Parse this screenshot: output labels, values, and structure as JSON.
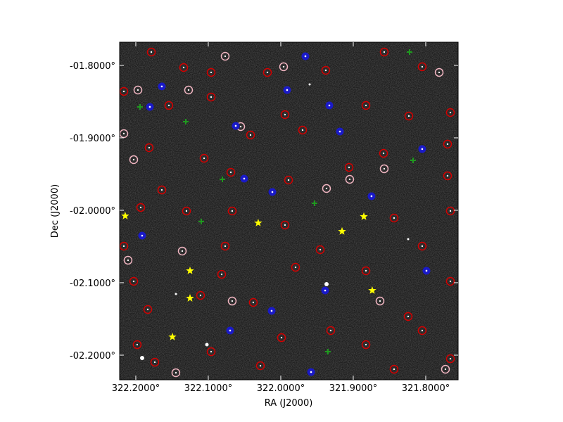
{
  "chart_data": {
    "type": "scatter",
    "xlabel": "RA (J2000)",
    "ylabel": "Dec (J2000)",
    "xlim": [
      322.2223,
      321.7553
    ],
    "ylim": [
      -2.234,
      -1.768
    ],
    "xticks": [
      {
        "value": 322.2,
        "label": "322.2000°"
      },
      {
        "value": 322.1,
        "label": "322.1000°"
      },
      {
        "value": 322.0,
        "label": "322.0000°"
      },
      {
        "value": 321.9,
        "label": "321.9000°"
      },
      {
        "value": 321.8,
        "label": "321.8000°"
      }
    ],
    "yticks": [
      {
        "value": -1.8,
        "label": "-01.8000°"
      },
      {
        "value": -1.9,
        "label": "-01.9000°"
      },
      {
        "value": -2.0,
        "label": "-02.0000°"
      },
      {
        "value": -2.1,
        "label": "-02.1000°"
      },
      {
        "value": -2.2,
        "label": "-02.2000°"
      }
    ],
    "background": "#1c1c1c",
    "series": [
      {
        "color": "#d40000",
        "marker": "ring",
        "x": [
          322.1786,
          322.134,
          322.0961,
          322.0184,
          321.9379,
          321.8573,
          321.8049,
          322.2165,
          322.1544,
          322.0961,
          321.9942,
          321.8825,
          321.8233,
          321.766,
          322.1816,
          322.1058,
          322.0417,
          321.9699,
          321.8582,
          321.7699,
          322.1641,
          322.0689,
          321.9893,
          321.9058,
          321.7699,
          322.1932,
          322.1301,
          322.067,
          321.9942,
          321.8437,
          321.766,
          322.2165,
          322.0767,
          321.9456,
          321.8049,
          322.2029,
          322.0815,
          321.9796,
          321.8825,
          321.766,
          322.1835,
          322.1107,
          322.0379,
          321.9311,
          321.8243,
          322.1981,
          322.0961,
          321.999,
          321.8825,
          321.8049,
          322.1738,
          322.0281,
          321.8437,
          321.766
        ],
        "y": [
          -1.7816,
          -1.8029,
          -1.8097,
          -1.8097,
          -1.8068,
          -1.7816,
          -1.8019,
          -1.8359,
          -1.8553,
          -1.8437,
          -1.868,
          -1.8553,
          -1.8699,
          -1.8651,
          -1.9136,
          -1.9282,
          -1.8961,
          -1.8893,
          -1.9214,
          -1.9087,
          -1.9719,
          -1.9476,
          -1.9583,
          -1.9408,
          -1.9524,
          -1.9961,
          -2.001,
          -2.001,
          -2.0204,
          -2.0107,
          -2.001,
          -2.0495,
          -2.0495,
          -2.0544,
          -2.0495,
          -2.0981,
          -2.0884,
          -2.0787,
          -2.0835,
          -2.0981,
          -2.1369,
          -2.1175,
          -2.1272,
          -2.166,
          -2.1466,
          -2.1855,
          -2.1952,
          -2.1758,
          -2.1855,
          -2.166,
          -2.2097,
          -2.2146,
          -2.2194,
          -2.2049
        ]
      },
      {
        "color": "#f2b6c2",
        "marker": "ring",
        "x": [
          322.1971,
          322.2165,
          322.2029,
          322.1272,
          322.0767,
          322.0553,
          321.9961,
          321.9369,
          321.9049,
          321.8573,
          321.7815,
          322.1359,
          322.2107,
          322.067,
          321.8631,
          321.7728,
          322.1447
        ],
        "y": [
          -1.834,
          -1.8942,
          -1.9301,
          -1.834,
          -1.7874,
          -1.8845,
          -1.8019,
          -1.9699,
          -1.9573,
          -1.9427,
          -1.8097,
          -2.0563,
          -2.069,
          -2.1253,
          -2.1253,
          -2.2194,
          -2.2243
        ]
      },
      {
        "color": "#1a1ac8",
        "marker": "dot",
        "x": [
          322.1641,
          322.1806,
          322.0621,
          321.966,
          321.9913,
          321.933,
          321.9184,
          321.8049,
          322.0505,
          322.0116,
          321.8748,
          322.1913,
          321.799,
          321.9388,
          322.0126,
          322.0699,
          321.9582
        ],
        "y": [
          -1.8291,
          -1.8573,
          -1.8835,
          -1.7874,
          -1.834,
          -1.8553,
          -1.8913,
          -1.9155,
          -1.9563,
          -1.9748,
          -1.9806,
          -2.035,
          -2.0835,
          -2.1107,
          -2.1388,
          -2.166,
          -2.2233
        ]
      },
      {
        "color": "#1f9a1f",
        "marker": "plus",
        "x": [
          321.8223,
          322.1942,
          322.1311,
          321.8175,
          322.0806,
          321.9534,
          322.1097,
          321.935
        ],
        "y": [
          -1.7816,
          -1.8573,
          -1.8777,
          -1.9311,
          -1.9573,
          -1.9903,
          -2.0155,
          -2.1952
        ]
      },
      {
        "color": "#ffff00",
        "marker": "star",
        "x": [
          322.2146,
          322.0311,
          321.9155,
          321.8854,
          322.1252,
          321.8738,
          322.1252,
          322.1495
        ],
        "y": [
          -2.0078,
          -2.0175,
          -2.0291,
          -2.0087,
          -2.0835,
          -2.1107,
          -2.1214,
          -2.1748
        ]
      }
    ]
  }
}
